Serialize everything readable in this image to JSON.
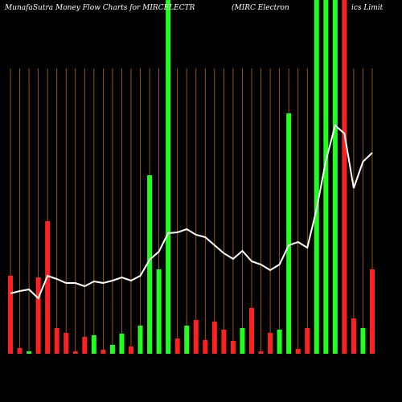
{
  "chart_data": {
    "type": "bar",
    "title": [
      "MunafaSutra  Money Flow  Charts for MIRCELECTR",
      "(MIRC Electron",
      "ics Limit"
    ],
    "categories": [
      null,
      null,
      null,
      null,
      null,
      null,
      null,
      null,
      null,
      null,
      null,
      null,
      null,
      null,
      null,
      null,
      null,
      null,
      null,
      null,
      null,
      null,
      null,
      null,
      null,
      null,
      null,
      null,
      null,
      null,
      null,
      null,
      null,
      null,
      null,
      null,
      null,
      null,
      null,
      null
    ],
    "values": [
      97,
      7,
      3,
      95,
      165,
      32,
      26,
      3,
      21,
      23,
      5,
      11,
      25,
      9,
      35,
      222,
      105,
      440,
      19,
      35,
      42,
      17,
      40,
      30,
      16,
      32,
      57,
      3,
      26,
      30,
      299,
      6,
      32,
      440,
      440,
      440,
      440,
      44,
      32,
      105
    ],
    "colors": [
      "#ff2020",
      "#ff2020",
      "#20ff20",
      "#ff2020",
      "#ff2020",
      "#ff2020",
      "#ff2020",
      "#ff2020",
      "#ff2020",
      "#20ff20",
      "#ff2020",
      "#20ff20",
      "#20ff20",
      "#ff2020",
      "#20ff20",
      "#20ff20",
      "#20ff20",
      "#20ff20",
      "#ff2020",
      "#20ff20",
      "#ff2020",
      "#ff2020",
      "#ff2020",
      "#ff2020",
      "#ff2020",
      "#20ff20",
      "#ff2020",
      "#ff2020",
      "#ff2020",
      "#20ff20",
      "#20ff20",
      "#ff2020",
      "#ff2020",
      "#20ff20",
      "#20ff20",
      "#20ff20",
      "#ff2020",
      "#ff2020",
      "#20ff20",
      "#ff2020"
    ],
    "line": {
      "color": "#ffffff",
      "values": [
        75,
        78,
        80,
        69,
        97,
        93,
        88,
        88,
        84,
        90,
        88,
        91,
        95,
        91,
        97,
        117,
        127,
        150,
        151,
        155,
        148,
        145,
        135,
        125,
        118,
        128,
        115,
        111,
        104,
        111,
        135,
        139,
        132,
        180,
        240,
        284,
        274,
        206,
        239,
        250
      ]
    },
    "ylim": [
      0,
      440
    ],
    "grid_color": "#b86a10"
  }
}
